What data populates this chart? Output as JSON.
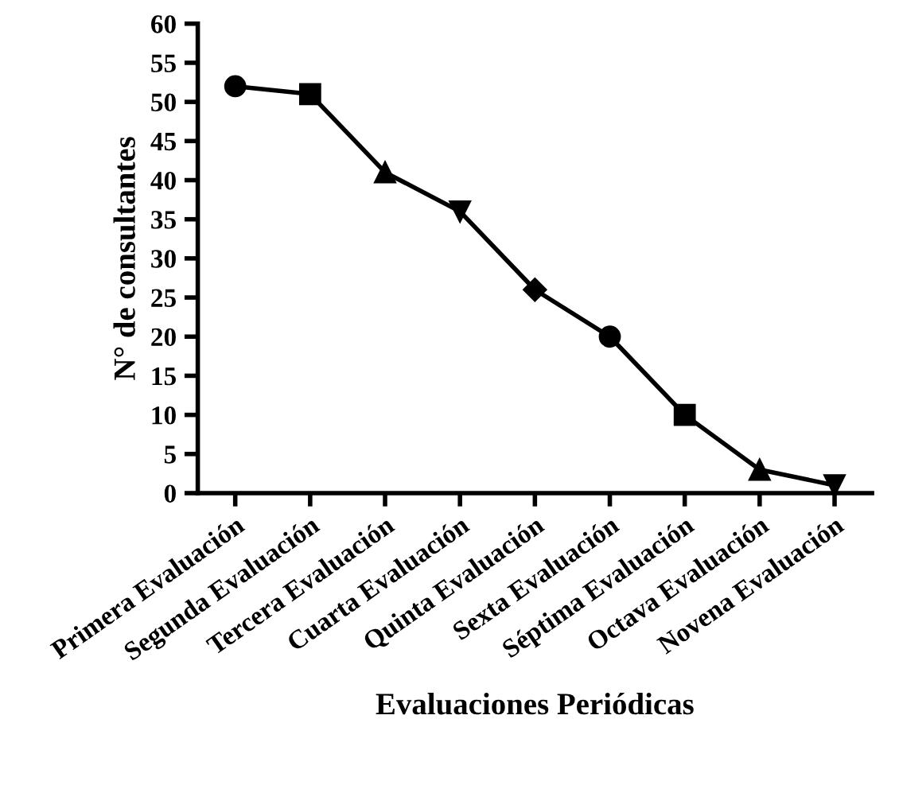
{
  "chart_data": {
    "type": "line",
    "xlabel": "Evaluaciones Periódicas",
    "ylabel": "N° de consultantes",
    "categories": [
      "Primera Evaluación",
      "Segunda Evaluación",
      "Tercera Evaluación",
      "Cuarta Evaluación",
      "Quinta Evaluación",
      "Sexta Evaluación",
      "Séptima Evaluación",
      "Octava Evaluación",
      "Novena Evaluación"
    ],
    "series": [
      {
        "color": "#000000",
        "values": [
          52,
          51,
          41,
          36,
          26,
          20,
          10,
          3,
          1
        ],
        "marker": [
          "circle",
          "square",
          "triangle",
          "triangle_down",
          "diamond",
          "circle",
          "square",
          "triangle",
          "triangle_down"
        ]
      }
    ],
    "ylim": [
      0,
      60
    ],
    "yticks": [
      0,
      5,
      10,
      15,
      20,
      25,
      30,
      35,
      40,
      45,
      50,
      55,
      60
    ],
    "grid": false,
    "legend": false,
    "line_style": "solid"
  }
}
